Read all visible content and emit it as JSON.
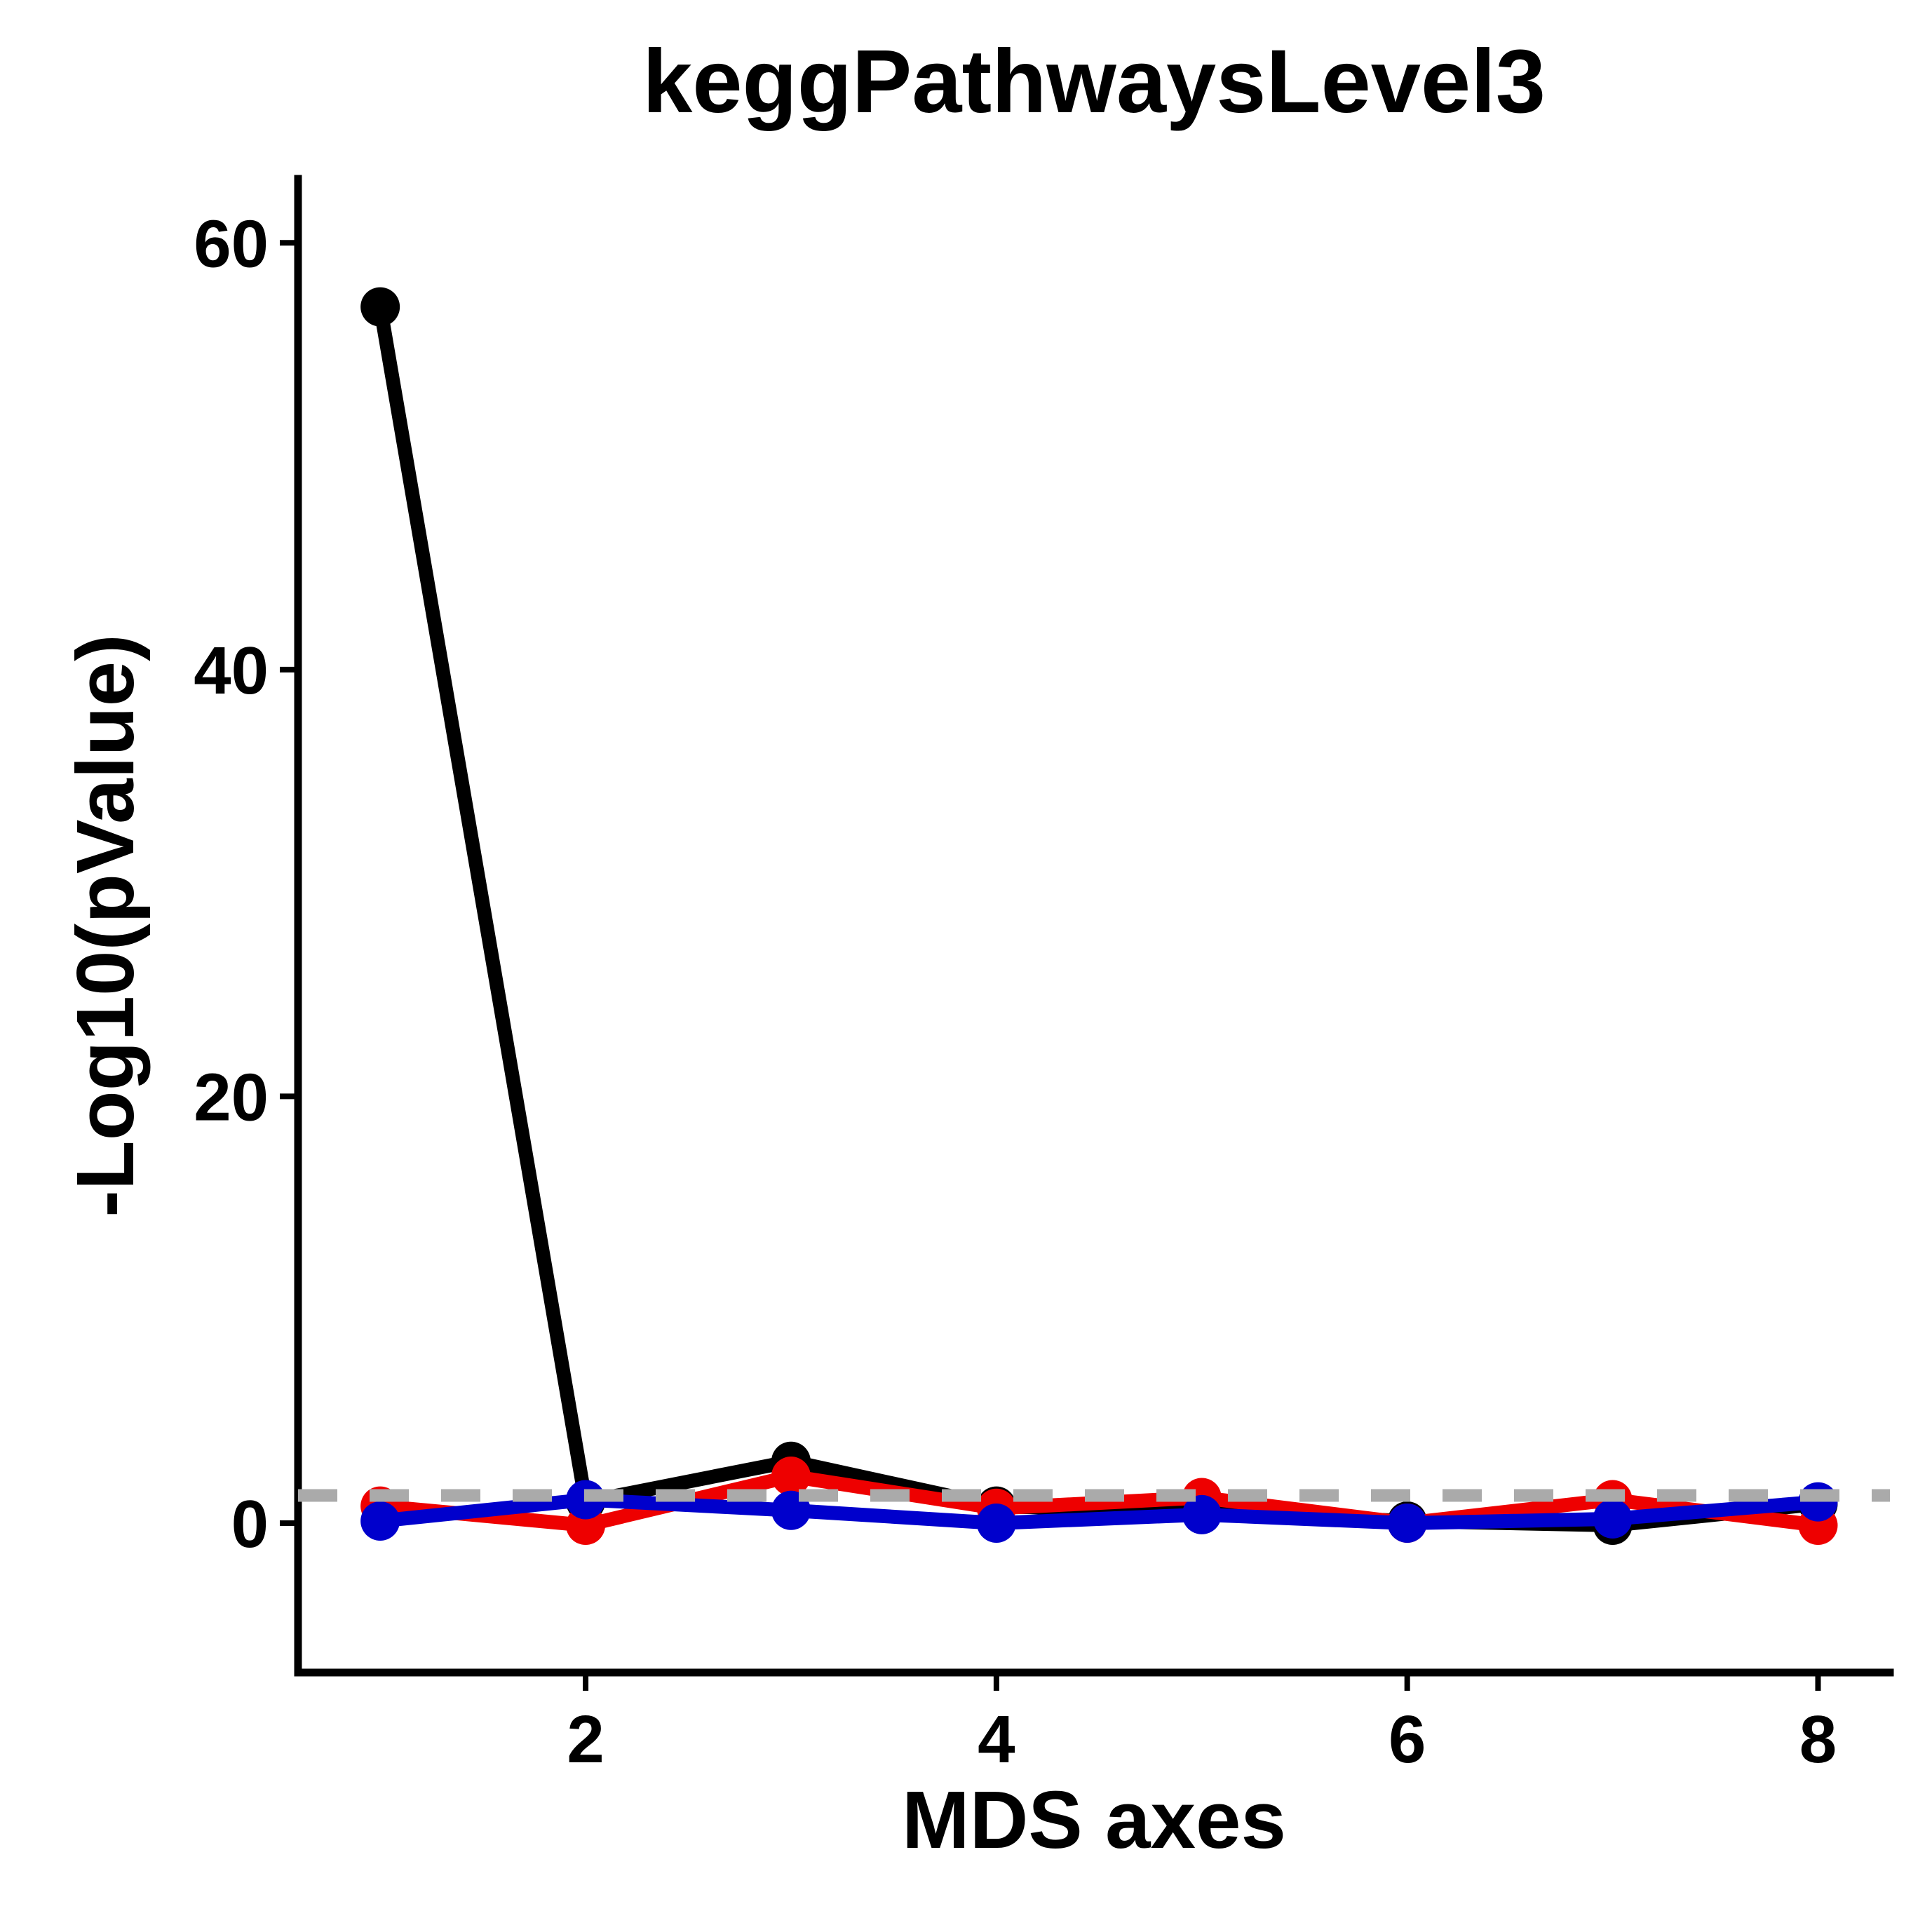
{
  "chart_data": {
    "type": "line",
    "title": "keggPathwaysLevel3",
    "xlabel": "MDS axes",
    "ylabel": "-Log10(pValue)",
    "x": [
      1,
      2,
      3,
      4,
      5,
      6,
      7,
      8
    ],
    "xlim": [
      0.6,
      8.35
    ],
    "ylim": [
      -7,
      63
    ],
    "xticks": [
      2,
      4,
      6,
      8
    ],
    "xtick_labels": [
      "2",
      "4",
      "6",
      "8"
    ],
    "yticks": [
      0,
      20,
      40,
      60
    ],
    "ytick_labels": [
      "0",
      "20",
      "40",
      "60"
    ],
    "grid": false,
    "threshold": 1.3,
    "threshold_color": "#aaaaaa",
    "series": [
      {
        "color": "#000000",
        "values": [
          57,
          1,
          2.9,
          0.8,
          0.5,
          0.1,
          -0.1,
          0.9
        ]
      },
      {
        "color": "#ee0000",
        "values": [
          0.8,
          -0.1,
          2.2,
          0.7,
          1.2,
          0,
          1.1,
          -0.1
        ]
      },
      {
        "color": "#0000cc",
        "values": [
          0.1,
          1.1,
          0.6,
          0,
          0.4,
          0,
          0.2,
          1
        ]
      }
    ]
  }
}
